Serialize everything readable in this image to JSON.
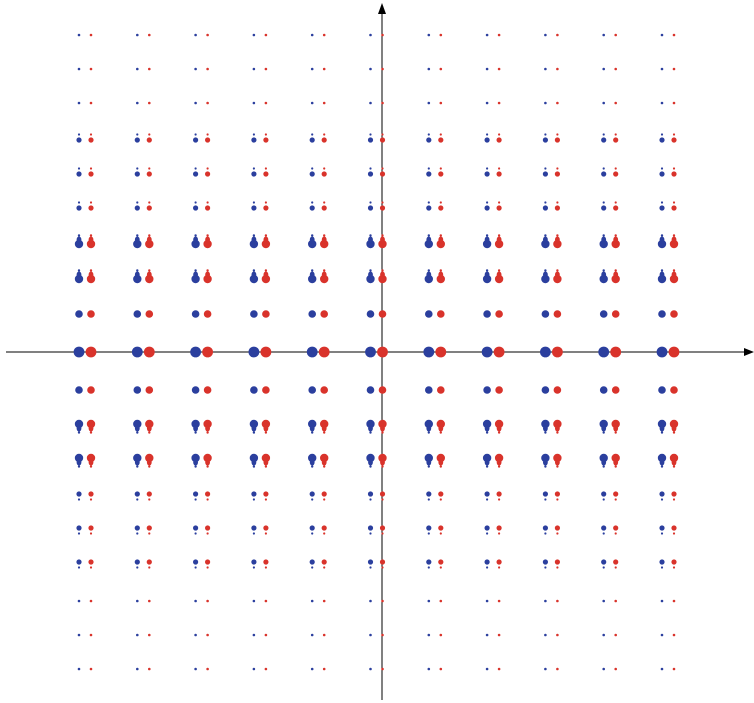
{
  "colors": {
    "background": "#ffffff",
    "axis": "#000000",
    "left_dots": "#2b3f9e",
    "right_dots": "#d9332b"
  },
  "lattice": {
    "columns": 11,
    "rows": 19,
    "row_kinds": [
      "tiny",
      "tiny",
      "tiny",
      "small-up",
      "small-up",
      "small-up",
      "pear-up",
      "pear-up",
      "round",
      "big",
      "round",
      "pear-down",
      "pear-down",
      "small-down",
      "small-down",
      "small-down",
      "tiny",
      "tiny",
      "tiny"
    ]
  },
  "axes": {
    "x_arrow": true,
    "y_arrow": true
  }
}
